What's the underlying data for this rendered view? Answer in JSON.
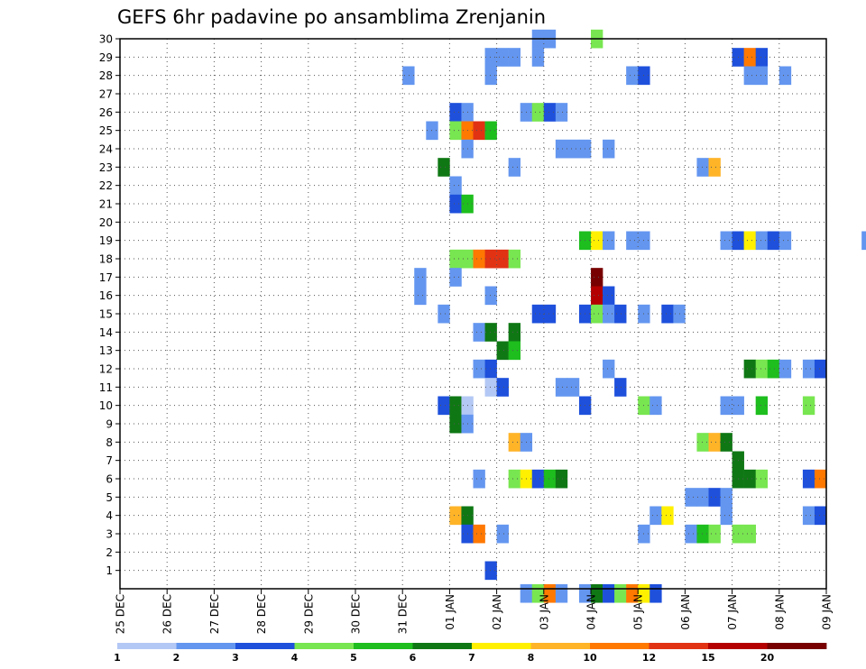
{
  "chart_data": {
    "type": "heatmap",
    "title": "GEFS 6hr padavine po ansamblima Zrenjanin",
    "xlabel": "",
    "ylabel": "",
    "x_tick_labels": [
      "25 DEC",
      "26 DEC",
      "27 DEC",
      "28 DEC",
      "29 DEC",
      "30 DEC",
      "31 DEC",
      "01 JAN",
      "02 JAN",
      "03 JAN",
      "04 JAN",
      "05 JAN",
      "06 JAN",
      "07 JAN",
      "08 JAN",
      "09 JAN"
    ],
    "x_range_days": [
      0,
      15
    ],
    "y_tick_labels": [
      "1",
      "2",
      "3",
      "4",
      "5",
      "6",
      "7",
      "8",
      "9",
      "10",
      "11",
      "12",
      "13",
      "14",
      "15",
      "16",
      "17",
      "18",
      "19",
      "20",
      "21",
      "22",
      "23",
      "24",
      "25",
      "26",
      "27",
      "28",
      "29",
      "30"
    ],
    "y_range": [
      0,
      30
    ],
    "grid": true,
    "colorbar": {
      "labels": [
        "1",
        "2",
        "3",
        "4",
        "5",
        "6",
        "7",
        "8",
        "10",
        "12",
        "15",
        "20"
      ],
      "colors": [
        "#b4c8f5",
        "#6496f0",
        "#1e50dc",
        "#78e650",
        "#1ebe1e",
        "#0f7814",
        "#fff000",
        "#ffb428",
        "#ff7800",
        "#e13214",
        "#b40000",
        "#780000"
      ]
    },
    "cell_width_days": 0.25,
    "cells": [
      [
        6.0,
        [
          [
            28,
            1
          ]
        ]
      ],
      [
        6.25,
        [
          [
            17,
            1
          ],
          [
            16,
            1
          ]
        ]
      ],
      [
        6.5,
        [
          [
            25,
            1
          ]
        ]
      ],
      [
        6.75,
        [
          [
            23,
            5
          ],
          [
            15,
            1
          ],
          [
            10,
            2
          ]
        ]
      ],
      [
        7.0,
        [
          [
            26,
            2
          ],
          [
            25,
            3
          ],
          [
            22,
            1
          ],
          [
            21,
            2
          ],
          [
            18,
            3
          ],
          [
            17,
            1
          ],
          [
            10,
            5
          ],
          [
            9,
            5
          ],
          [
            4,
            7
          ]
        ]
      ],
      [
        7.25,
        [
          [
            26,
            1
          ],
          [
            25,
            8
          ],
          [
            24,
            1
          ],
          [
            21,
            4
          ],
          [
            18,
            3
          ],
          [
            10,
            0
          ],
          [
            9,
            1
          ],
          [
            4,
            5
          ],
          [
            3,
            2
          ]
        ]
      ],
      [
        7.5,
        [
          [
            25,
            9
          ],
          [
            18,
            8
          ],
          [
            14,
            1
          ],
          [
            12,
            1
          ],
          [
            6,
            1
          ],
          [
            3,
            8
          ]
        ]
      ],
      [
        7.75,
        [
          [
            29,
            1
          ],
          [
            28,
            1
          ],
          [
            25,
            4
          ],
          [
            18,
            9
          ],
          [
            16,
            1
          ],
          [
            14,
            5
          ],
          [
            12,
            2
          ],
          [
            11,
            0
          ],
          [
            1,
            2
          ]
        ]
      ],
      [
        8.0,
        [
          [
            29,
            1
          ],
          [
            18,
            9
          ],
          [
            13,
            5
          ],
          [
            11,
            2
          ],
          [
            3,
            1
          ]
        ]
      ],
      [
        8.25,
        [
          [
            29,
            1
          ],
          [
            23,
            1
          ],
          [
            18,
            3
          ],
          [
            14,
            5
          ],
          [
            13,
            4
          ],
          [
            8,
            7
          ],
          [
            6,
            3
          ]
        ]
      ],
      [
        8.5,
        [
          [
            26,
            1
          ],
          [
            8,
            1
          ],
          [
            6,
            6
          ],
          [
            -0.25,
            1
          ]
        ]
      ],
      [
        8.75,
        [
          [
            30,
            1
          ],
          [
            29,
            1
          ],
          [
            26,
            3
          ],
          [
            15,
            2
          ],
          [
            6,
            2
          ],
          [
            -0.25,
            3
          ]
        ]
      ],
      [
        9.0,
        [
          [
            30,
            1
          ],
          [
            26,
            2
          ],
          [
            15,
            2
          ],
          [
            6,
            4
          ],
          [
            -0.25,
            8
          ]
        ]
      ],
      [
        9.25,
        [
          [
            26,
            1
          ],
          [
            24,
            1
          ],
          [
            11,
            1
          ],
          [
            6,
            5
          ],
          [
            -0.25,
            1
          ]
        ]
      ],
      [
        9.5,
        [
          [
            24,
            1
          ],
          [
            11,
            1
          ]
        ]
      ],
      [
        9.75,
        [
          [
            24,
            1
          ],
          [
            19,
            4
          ],
          [
            15,
            2
          ],
          [
            10,
            2
          ],
          [
            -0.25,
            1
          ]
        ]
      ],
      [
        10.0,
        [
          [
            30,
            3
          ],
          [
            19,
            6
          ],
          [
            17,
            11
          ],
          [
            16,
            10
          ],
          [
            15,
            3
          ],
          [
            -0.25,
            5
          ]
        ]
      ],
      [
        10.25,
        [
          [
            24,
            1
          ],
          [
            19,
            1
          ],
          [
            16,
            2
          ],
          [
            15,
            1
          ],
          [
            12,
            1
          ],
          [
            -0.25,
            2
          ]
        ]
      ],
      [
        10.5,
        [
          [
            15,
            2
          ],
          [
            11,
            2
          ],
          [
            -0.25,
            3
          ]
        ]
      ],
      [
        10.75,
        [
          [
            28,
            1
          ],
          [
            19,
            1
          ],
          [
            -0.25,
            8
          ]
        ]
      ],
      [
        11.0,
        [
          [
            28,
            2
          ],
          [
            19,
            1
          ],
          [
            15,
            1
          ],
          [
            10,
            3
          ],
          [
            3,
            1
          ],
          [
            -0.25,
            6
          ]
        ]
      ],
      [
        11.25,
        [
          [
            10,
            1
          ],
          [
            4,
            1
          ],
          [
            -0.25,
            2
          ]
        ]
      ],
      [
        11.5,
        [
          [
            15,
            2
          ],
          [
            4,
            6
          ]
        ]
      ],
      [
        11.75,
        [
          [
            15,
            1
          ]
        ]
      ],
      [
        12.0,
        [
          [
            5,
            1
          ],
          [
            3,
            1
          ]
        ]
      ],
      [
        12.25,
        [
          [
            23,
            1
          ],
          [
            8,
            3
          ],
          [
            5,
            1
          ],
          [
            3,
            4
          ]
        ]
      ],
      [
        12.5,
        [
          [
            23,
            7
          ],
          [
            8,
            7
          ],
          [
            5,
            2
          ],
          [
            3,
            3
          ]
        ]
      ],
      [
        12.75,
        [
          [
            19,
            1
          ],
          [
            10,
            1
          ],
          [
            8,
            5
          ],
          [
            5,
            1
          ],
          [
            4,
            1
          ]
        ]
      ],
      [
        13.0,
        [
          [
            29,
            2
          ],
          [
            19,
            2
          ],
          [
            10,
            1
          ],
          [
            7,
            5
          ],
          [
            6,
            5
          ],
          [
            3,
            3
          ]
        ]
      ],
      [
        13.25,
        [
          [
            29,
            8
          ],
          [
            28,
            1
          ],
          [
            19,
            6
          ],
          [
            12,
            5
          ],
          [
            6,
            5
          ],
          [
            3,
            3
          ]
        ]
      ],
      [
        13.5,
        [
          [
            29,
            2
          ],
          [
            28,
            1
          ],
          [
            19,
            1
          ],
          [
            12,
            3
          ],
          [
            10,
            4
          ],
          [
            6,
            3
          ]
        ]
      ],
      [
        13.75,
        [
          [
            19,
            2
          ],
          [
            12,
            4
          ]
        ]
      ],
      [
        14.0,
        [
          [
            28,
            1
          ],
          [
            19,
            1
          ],
          [
            12,
            1
          ]
        ]
      ],
      [
        14.5,
        [
          [
            12,
            1
          ],
          [
            10,
            3
          ],
          [
            6,
            2
          ],
          [
            4,
            1
          ]
        ]
      ],
      [
        14.75,
        [
          [
            12,
            2
          ],
          [
            6,
            8
          ],
          [
            4,
            2
          ]
        ]
      ],
      [
        15.75,
        [
          [
            19,
            1
          ]
        ]
      ],
      [
        5.75,
        []
      ]
    ]
  }
}
